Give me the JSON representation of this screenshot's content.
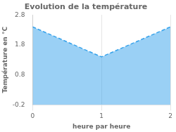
{
  "chart_data": {
    "type": "area",
    "title": "Evolution de la température",
    "xlabel": "heure par heure",
    "ylabel": "Température en °C",
    "x": [
      0,
      1,
      2
    ],
    "values": [
      2.4,
      1.4,
      2.4
    ],
    "xlim": [
      0,
      2
    ],
    "ylim": [
      -0.2,
      2.8
    ],
    "xticks": [
      0,
      1,
      2
    ],
    "yticks": [
      -0.2,
      0.8,
      1.8,
      2.8
    ],
    "grid": "x",
    "line_style": "dashed"
  }
}
